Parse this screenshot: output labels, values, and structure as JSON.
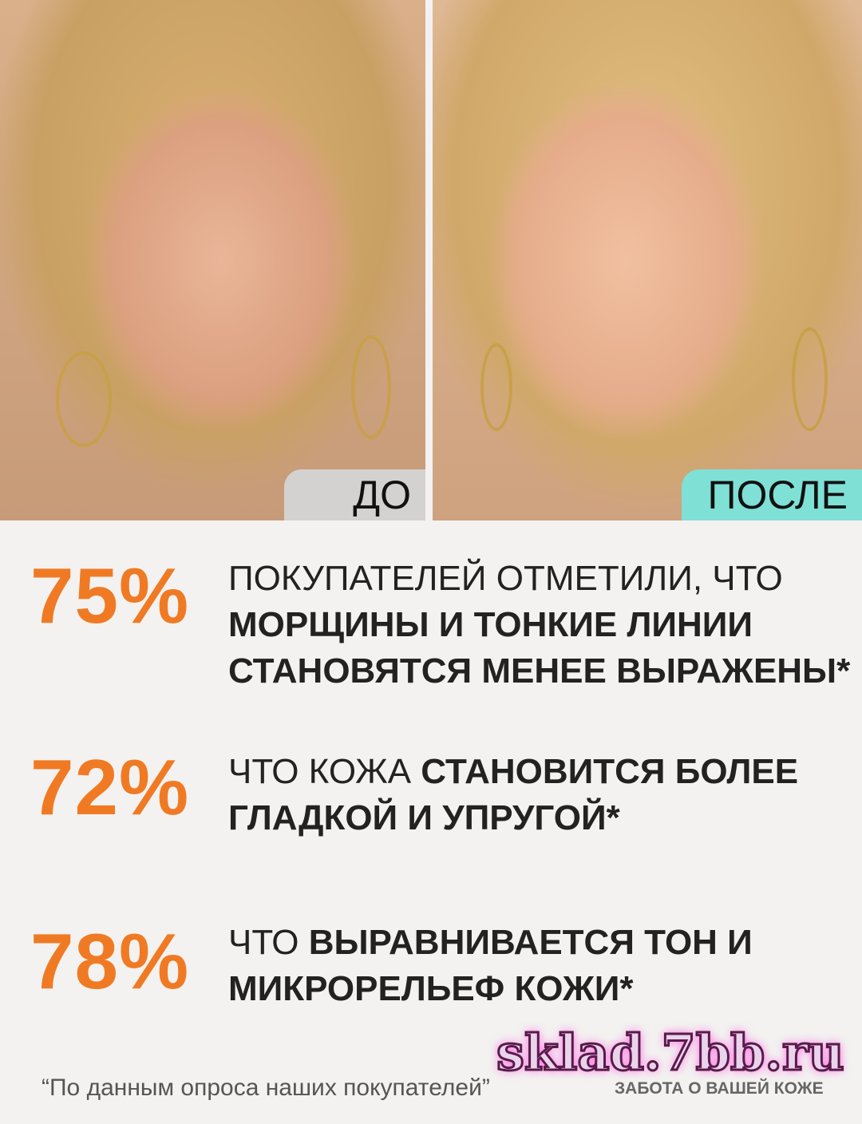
{
  "photos": {
    "before_label": "ДО",
    "after_label": "ПОСЛЕ",
    "label_colors": {
      "before": "#d3d2d0",
      "after": "#7fe0d6"
    }
  },
  "accent_color": "#f07a24",
  "stats": [
    {
      "percent": "75%",
      "plain": "покупателей отметили, что",
      "bold": "морщины и тонкие линии становятся менее выражены*"
    },
    {
      "percent": "72%",
      "plain": "что кожа ",
      "bold": "становится более гладкой и упругой*"
    },
    {
      "percent": "78%",
      "plain": "что ",
      "bold": "выравнивается тон и микрорельеф кожи*"
    }
  ],
  "footnote": "“По данным опроса наших покупателей”",
  "brand_tagline": "ЗАБОТА О ВАШЕЙ КОЖЕ",
  "watermark": "sklad.7bb.ru"
}
